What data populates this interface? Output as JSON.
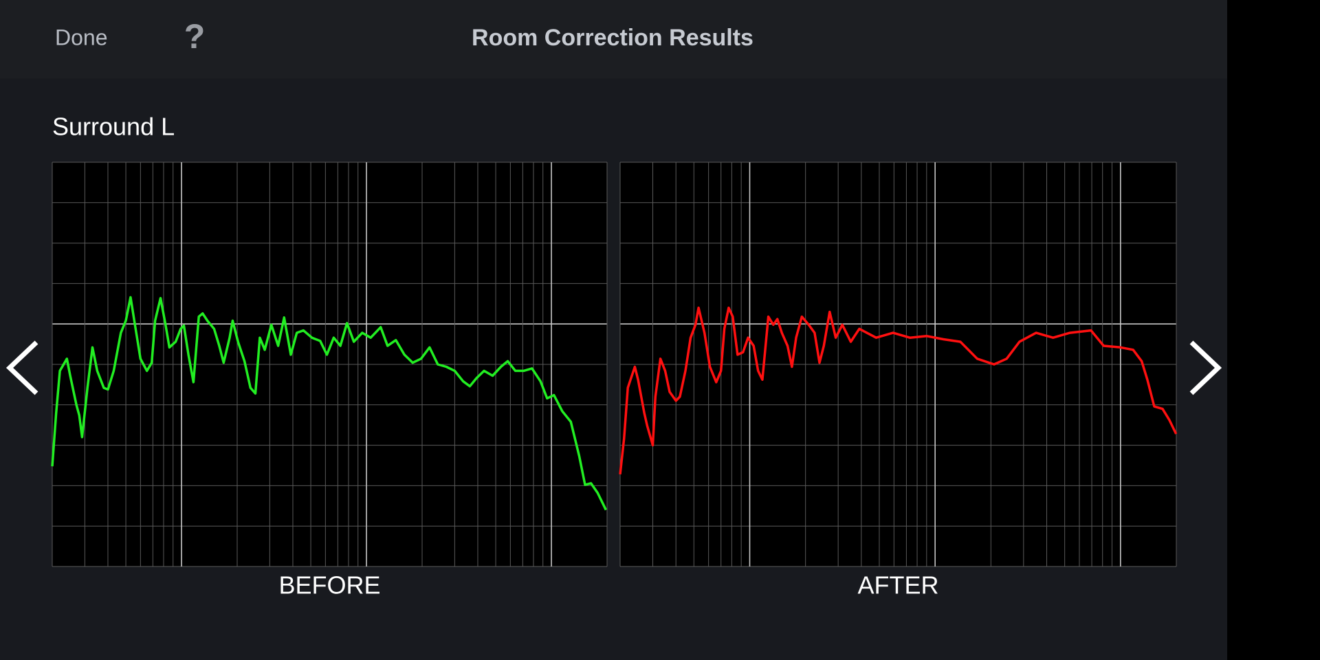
{
  "header": {
    "done": "Done",
    "help": "?",
    "title": "Room Correction Results"
  },
  "section": "Surround L",
  "chart_data": [
    {
      "type": "line",
      "caption": "BEFORE",
      "color": "#22ee22",
      "log_x": true,
      "grid": true,
      "xlim": [
        20,
        20000
      ],
      "ylim": [
        -30,
        20
      ],
      "xticks": [
        20,
        30,
        40,
        50,
        60,
        70,
        80,
        90,
        100,
        200,
        300,
        400,
        500,
        600,
        700,
        800,
        900,
        1000,
        2000,
        3000,
        4000,
        5000,
        6000,
        7000,
        8000,
        9000,
        10000,
        20000
      ],
      "yticks": [
        -30,
        -25,
        -20,
        -15,
        -10,
        -5,
        0,
        5,
        10,
        15,
        20
      ],
      "x": [
        20,
        21,
        22,
        24,
        25,
        27,
        28,
        29,
        31,
        33,
        35,
        38,
        40,
        43,
        47,
        50,
        53,
        56,
        60,
        65,
        69,
        72,
        77,
        82,
        86,
        93,
        99,
        103,
        109,
        116,
        124,
        130,
        138,
        150,
        160,
        169,
        182,
        189,
        202,
        219,
        236,
        251,
        265,
        282,
        306,
        333,
        359,
        390,
        420,
        456,
        507,
        562,
        611,
        665,
        723,
        785,
        855,
        949,
        1054,
        1194,
        1300,
        1442,
        1603,
        1778,
        1972,
        2193,
        2432,
        2704,
        3000,
        3334,
        3622,
        3936,
        4325,
        4808,
        5333,
        5807,
        6383,
        7079,
        7852,
        8730,
        9484,
        10322,
        11455,
        12735,
        14125,
        15205,
        16368,
        17783,
        19724
      ],
      "values": [
        -17.6,
        -11,
        -5.8,
        -4.3,
        -6.4,
        -10,
        -11.3,
        -14,
        -7.9,
        -2.9,
        -5.8,
        -7.9,
        -8.1,
        -5.8,
        -1.1,
        0.4,
        3.3,
        -0.1,
        -4.3,
        -5.8,
        -4.8,
        0.4,
        3.2,
        -0.1,
        -2.9,
        -2.2,
        -0.6,
        -0.2,
        -3.8,
        -7.2,
        0.9,
        1.3,
        0.4,
        -0.6,
        -2.7,
        -4.8,
        -1.7,
        0.4,
        -2.2,
        -4.6,
        -7.9,
        -8.6,
        -1.7,
        -3.2,
        -0.1,
        -2.7,
        0.8,
        -3.8,
        -1.1,
        -0.8,
        -1.7,
        -2.1,
        -3.8,
        -1.7,
        -2.7,
        0.1,
        -2.2,
        -1.1,
        -1.7,
        -0.4,
        -2.7,
        -2,
        -3.8,
        -4.8,
        -4.3,
        -2.9,
        -5,
        -5.3,
        -5.8,
        -7.1,
        -7.7,
        -6.7,
        -5.8,
        -6.4,
        -5.3,
        -4.6,
        -5.8,
        -5.8,
        -5.5,
        -7.1,
        -9.2,
        -8.8,
        -10.8,
        -12.1,
        -16.3,
        -19.9,
        -19.7,
        -20.9,
        -23
      ]
    },
    {
      "type": "line",
      "caption": "AFTER",
      "color": "#ff1010",
      "log_x": true,
      "grid": true,
      "xlim": [
        20,
        20000
      ],
      "ylim": [
        -30,
        20
      ],
      "xticks": [
        20,
        30,
        40,
        50,
        60,
        70,
        80,
        90,
        100,
        200,
        300,
        400,
        500,
        600,
        700,
        800,
        900,
        1000,
        2000,
        3000,
        4000,
        5000,
        6000,
        7000,
        8000,
        9000,
        10000,
        20000
      ],
      "yticks": [
        -30,
        -25,
        -20,
        -15,
        -10,
        -5,
        0,
        5,
        10,
        15,
        20
      ],
      "x": [
        20,
        21,
        22,
        24,
        25,
        27,
        28,
        30,
        31,
        33,
        35,
        37,
        40,
        42,
        45,
        48,
        51,
        53,
        57,
        61,
        66,
        70,
        73,
        77,
        81,
        86,
        92,
        98,
        105,
        111,
        117,
        126,
        134,
        141,
        149,
        160,
        169,
        178,
        191,
        208,
        224,
        238,
        251,
        270,
        291,
        316,
        351,
        390,
        481,
        593,
        731,
        902,
        1109,
        1368,
        1687,
        2080,
        2432,
        2851,
        3508,
        4325,
        5333,
        6934,
        8110,
        10000,
        11695,
        13002,
        13964,
        15205,
        16866,
        18365,
        19953
      ],
      "values": [
        -18.6,
        -14.2,
        -7.9,
        -5.3,
        -6.9,
        -11,
        -12.6,
        -15,
        -9,
        -4.3,
        -5.8,
        -8.4,
        -9.5,
        -9,
        -5.8,
        -1.7,
        -0.1,
        2,
        -1.1,
        -5.3,
        -7.2,
        -5.8,
        -0.6,
        2,
        0.9,
        -3.8,
        -3.5,
        -1.7,
        -2.7,
        -5.8,
        -6.9,
        0.9,
        -0.1,
        0.6,
        -1.1,
        -2.7,
        -5.3,
        -1.7,
        0.9,
        -0.1,
        -1.1,
        -4.8,
        -2.7,
        1.5,
        -1.7,
        -0.1,
        -2.2,
        -0.6,
        -1.7,
        -1.1,
        -1.7,
        -1.5,
        -1.9,
        -2.2,
        -4.3,
        -5,
        -4.3,
        -2.2,
        -1.1,
        -1.7,
        -1.1,
        -0.8,
        -2.7,
        -2.9,
        -3.2,
        -4.6,
        -6.9,
        -10.2,
        -10.5,
        -11.9,
        -13.6
      ]
    }
  ]
}
